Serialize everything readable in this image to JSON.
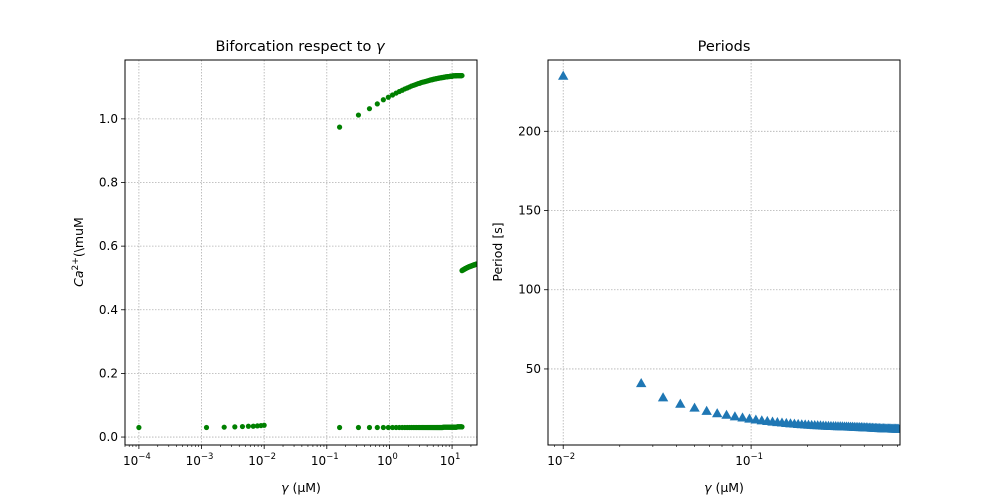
{
  "chart_data": [
    {
      "type": "scatter",
      "title": "Biforcation respect to γ",
      "title_text": "Biforcation respect to ",
      "title_symbol": "γ",
      "xlabel_symbol": "γ",
      "xlabel_unit": " (μM)",
      "ylabel_base": "Ca",
      "ylabel_sup": "2+",
      "ylabel_unit": "(\\muM",
      "xscale": "log",
      "xlim": [
        6e-05,
        25
      ],
      "ylim": [
        -0.025,
        1.185
      ],
      "xticks": [
        0.0001,
        0.001,
        0.01,
        0.1,
        1,
        10
      ],
      "xtick_labels": [
        {
          "base": "10",
          "exp": "−4"
        },
        {
          "base": "10",
          "exp": "−3"
        },
        {
          "base": "10",
          "exp": "−2"
        },
        {
          "base": "10",
          "exp": "−1"
        },
        {
          "base": "10",
          "exp": "0"
        },
        {
          "base": "10",
          "exp": "1"
        }
      ],
      "yticks": [
        0.0,
        0.2,
        0.4,
        0.6,
        0.8,
        1.0
      ],
      "ytick_labels": [
        "0.0",
        "0.2",
        "0.4",
        "0.6",
        "0.8",
        "1.0"
      ],
      "grid": true,
      "marker": "circle",
      "color": "#008000",
      "lower_x": [
        0.0001,
        0.0012,
        0.0023,
        0.0034,
        0.0045,
        0.0056,
        0.0067,
        0.0078,
        0.0089,
        0.01,
        0.16,
        0.32,
        0.48,
        0.64,
        0.8,
        0.96,
        1.12,
        1.28,
        1.44,
        1.6,
        1.76,
        1.92,
        2.08,
        2.24,
        2.4,
        2.56,
        2.72,
        2.88,
        3.04,
        3.2,
        3.36,
        3.52,
        3.68,
        3.84,
        4.0,
        4.16,
        4.32,
        4.48,
        4.64,
        4.8,
        4.96,
        5.12,
        5.28,
        5.44,
        5.6,
        5.76,
        5.92,
        6.08,
        6.24,
        6.4,
        6.56,
        6.72,
        6.88,
        7.04,
        7.2,
        7.36,
        7.52,
        7.68,
        7.84,
        8.0,
        8.16,
        8.32,
        8.48,
        8.64,
        8.8,
        8.96,
        9.12,
        9.28,
        9.44,
        9.6,
        9.76,
        9.92,
        10.08,
        10.24,
        10.4,
        10.56,
        10.72,
        10.88,
        11.04,
        11.2,
        11.36,
        11.52,
        11.68,
        11.84,
        12.0,
        12.16,
        12.32,
        12.48,
        12.64,
        12.8,
        12.96,
        13.12,
        13.28,
        13.44,
        13.6,
        13.76,
        13.92,
        14.08,
        14.24,
        14.4
      ],
      "lower_y": [
        0.03,
        0.03,
        0.031,
        0.032,
        0.033,
        0.034,
        0.034,
        0.035,
        0.036,
        0.037,
        0.03,
        0.03,
        0.03,
        0.03,
        0.03,
        0.03,
        0.03,
        0.03,
        0.03,
        0.03,
        0.03,
        0.03,
        0.03,
        0.03,
        0.03,
        0.03,
        0.03,
        0.03,
        0.03,
        0.03,
        0.03,
        0.03,
        0.03,
        0.03,
        0.03,
        0.03,
        0.03,
        0.03,
        0.03,
        0.03,
        0.03,
        0.03,
        0.03,
        0.03,
        0.03,
        0.03,
        0.03,
        0.03,
        0.03,
        0.03,
        0.03,
        0.03,
        0.03,
        0.03,
        0.031,
        0.031,
        0.031,
        0.031,
        0.031,
        0.031,
        0.031,
        0.031,
        0.031,
        0.031,
        0.031,
        0.031,
        0.031,
        0.031,
        0.031,
        0.031,
        0.031,
        0.031,
        0.031,
        0.031,
        0.031,
        0.031,
        0.031,
        0.031,
        0.031,
        0.031,
        0.031,
        0.031,
        0.031,
        0.031,
        0.032,
        0.032,
        0.032,
        0.032,
        0.032,
        0.032,
        0.032,
        0.032,
        0.032,
        0.032,
        0.032,
        0.032,
        0.032,
        0.032,
        0.032,
        0.032
      ],
      "upper_x": [
        0.16,
        0.32,
        0.48,
        0.64,
        0.8,
        0.96,
        1.12,
        1.28,
        1.44,
        1.6,
        1.76,
        1.92,
        2.08,
        2.24,
        2.4,
        2.56,
        2.72,
        2.88,
        3.04,
        3.2,
        3.36,
        3.52,
        3.68,
        3.84,
        4.0,
        4.16,
        4.32,
        4.48,
        4.64,
        4.8,
        4.96,
        5.12,
        5.28,
        5.44,
        5.6,
        5.76,
        5.92,
        6.08,
        6.24,
        6.4,
        6.56,
        6.72,
        6.88,
        7.04,
        7.2,
        7.36,
        7.52,
        7.68,
        7.84,
        8.0,
        8.16,
        8.32,
        8.48,
        8.64,
        8.8,
        8.96,
        9.12,
        9.28,
        9.44,
        9.6,
        9.76,
        9.92,
        10.08,
        10.24,
        10.4,
        10.56,
        10.72,
        10.88,
        11.04,
        11.2,
        11.36,
        11.52,
        11.68,
        11.84,
        12.0,
        12.16,
        12.32,
        12.48,
        12.64,
        12.8,
        12.96,
        13.12,
        13.28,
        13.44,
        13.6,
        13.76,
        13.92,
        14.08,
        14.24,
        14.4
      ],
      "upper_y": [
        0.974,
        1.012,
        1.032,
        1.047,
        1.06,
        1.068,
        1.075,
        1.081,
        1.086,
        1.09,
        1.094,
        1.097,
        1.1,
        1.103,
        1.105,
        1.107,
        1.109,
        1.111,
        1.112,
        1.114,
        1.115,
        1.116,
        1.117,
        1.118,
        1.119,
        1.12,
        1.121,
        1.122,
        1.123,
        1.123,
        1.124,
        1.125,
        1.125,
        1.126,
        1.126,
        1.127,
        1.127,
        1.128,
        1.128,
        1.129,
        1.129,
        1.129,
        1.13,
        1.13,
        1.13,
        1.131,
        1.131,
        1.131,
        1.132,
        1.132,
        1.132,
        1.132,
        1.133,
        1.133,
        1.133,
        1.133,
        1.133,
        1.134,
        1.134,
        1.134,
        1.134,
        1.134,
        1.134,
        1.135,
        1.135,
        1.135,
        1.135,
        1.135,
        1.135,
        1.135,
        1.135,
        1.136,
        1.136,
        1.136,
        1.136,
        1.136,
        1.136,
        1.136,
        1.136,
        1.136,
        1.136,
        1.136,
        1.136,
        1.136,
        1.136,
        1.136,
        1.136,
        1.136,
        1.136,
        1.136
      ],
      "branch_x": [
        14.4,
        14.6,
        14.8,
        15.0,
        15.2,
        15.4,
        15.6,
        15.8,
        16.0,
        16.2,
        16.4,
        16.6,
        16.8,
        17.0,
        17.2,
        17.4,
        17.6,
        17.8,
        18.0,
        18.2,
        18.4,
        18.6,
        18.8,
        19.0,
        19.2,
        19.4,
        19.6,
        19.8,
        20.0,
        20.2,
        20.4,
        20.6,
        20.8,
        21.0,
        21.2,
        21.4,
        21.6,
        21.8,
        22.0,
        22.2,
        22.4,
        22.6,
        22.8,
        23.0,
        23.2,
        23.4,
        23.6,
        23.8,
        24.0,
        24.2,
        24.4,
        24.6,
        24.8
      ],
      "branch_y": [
        0.523,
        0.524,
        0.525,
        0.525,
        0.526,
        0.527,
        0.527,
        0.528,
        0.529,
        0.529,
        0.53,
        0.53,
        0.531,
        0.531,
        0.532,
        0.532,
        0.533,
        0.533,
        0.534,
        0.534,
        0.535,
        0.535,
        0.535,
        0.536,
        0.536,
        0.536,
        0.537,
        0.537,
        0.537,
        0.538,
        0.538,
        0.538,
        0.539,
        0.539,
        0.539,
        0.54,
        0.54,
        0.54,
        0.54,
        0.541,
        0.541,
        0.541,
        0.541,
        0.542,
        0.542,
        0.542,
        0.542,
        0.543,
        0.543,
        0.543,
        0.543,
        0.544,
        0.544
      ]
    },
    {
      "type": "scatter",
      "title": "Periods",
      "xlabel_symbol": "γ",
      "xlabel_unit": " (μM)",
      "ylabel": "Period [s]",
      "xscale": "log",
      "xlim": [
        0.0083,
        0.62
      ],
      "ylim": [
        2,
        245
      ],
      "xticks": [
        0.01,
        0.1
      ],
      "xtick_labels": [
        {
          "base": "10",
          "exp": "−2"
        },
        {
          "base": "10",
          "exp": "−1"
        }
      ],
      "yticks": [
        50,
        100,
        150,
        200
      ],
      "ytick_labels": [
        "50",
        "100",
        "150",
        "200"
      ],
      "grid": true,
      "marker": "triangle",
      "color": "#1f77b4",
      "x": [
        0.01,
        0.026,
        0.034,
        0.042,
        0.05,
        0.058,
        0.066,
        0.074,
        0.082,
        0.09,
        0.098,
        0.106,
        0.114,
        0.122,
        0.13,
        0.138,
        0.146,
        0.154,
        0.162,
        0.17,
        0.178,
        0.186,
        0.194,
        0.202,
        0.21,
        0.218,
        0.226,
        0.234,
        0.242,
        0.25,
        0.258,
        0.266,
        0.274,
        0.282,
        0.29,
        0.298,
        0.306,
        0.314,
        0.322,
        0.33,
        0.338,
        0.346,
        0.354,
        0.362,
        0.37,
        0.378,
        0.386,
        0.394,
        0.402,
        0.41,
        0.418,
        0.426,
        0.434,
        0.442,
        0.45,
        0.458,
        0.466,
        0.474,
        0.482,
        0.49,
        0.498,
        0.506,
        0.514,
        0.522,
        0.53,
        0.538,
        0.546,
        0.554,
        0.562,
        0.57,
        0.578,
        0.586,
        0.594,
        0.602,
        0.61
      ],
      "y": [
        235,
        41,
        32,
        28,
        25.5,
        23.5,
        22,
        21,
        20,
        19.3,
        18.6,
        18,
        17.5,
        17.1,
        16.7,
        16.4,
        16.1,
        15.8,
        15.6,
        15.4,
        15.2,
        15,
        14.9,
        14.7,
        14.6,
        14.5,
        14.4,
        14.3,
        14.2,
        14.1,
        14,
        13.95,
        13.9,
        13.85,
        13.8,
        13.75,
        13.7,
        13.65,
        13.6,
        13.55,
        13.5,
        13.45,
        13.4,
        13.35,
        13.3,
        13.25,
        13.2,
        13.15,
        13.1,
        13.05,
        13,
        12.95,
        12.9,
        12.85,
        12.8,
        12.75,
        12.7,
        12.65,
        12.6,
        12.55,
        12.5,
        12.5,
        12.45,
        12.45,
        12.4,
        12.4,
        12.35,
        12.35,
        12.3,
        12.3,
        12.25,
        12.25,
        12.2,
        12.2,
        12.2
      ]
    }
  ]
}
